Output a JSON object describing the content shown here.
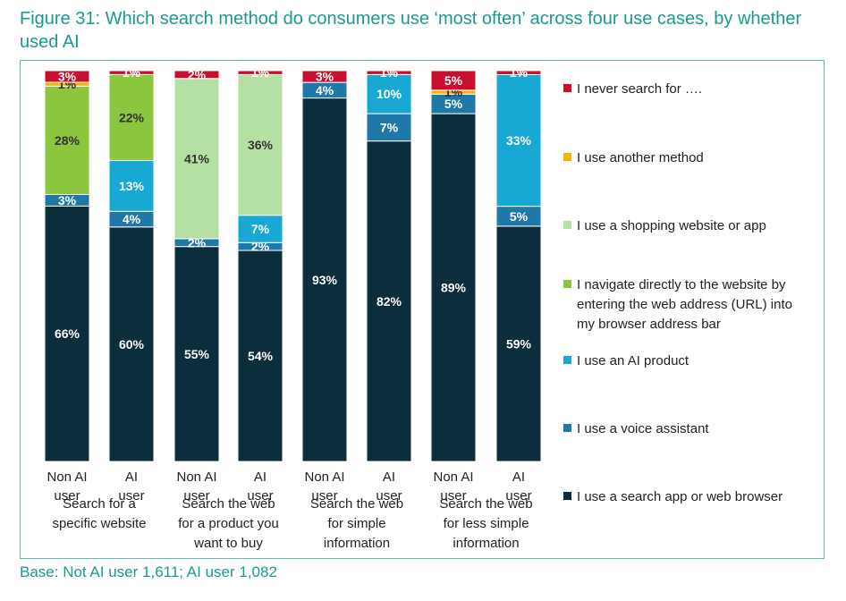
{
  "figure_title": "Figure 31: Which search method do consumers use ‘most often’ across four use cases, by whether used AI",
  "base_note": "Base: Not AI user 1,611; AI user 1,082",
  "colors": {
    "title": "#1a9a8f",
    "frame": "#5bbcb3",
    "label_dark": "#ffffff",
    "label_light": "#333333"
  },
  "chart_data": {
    "type": "bar",
    "stacked": true,
    "percent_stacked": true,
    "legend_position": "right",
    "grid": false,
    "groups": [
      "Search for a specific website",
      "Search the web for a product you want to buy",
      "Search the web for simple information",
      "Search the web for less simple information"
    ],
    "categories": [
      "Non AI user",
      "AI user",
      "Non AI user",
      "AI user",
      "Non AI user",
      "AI user",
      "Non AI user",
      "AI user"
    ],
    "category_group": [
      0,
      0,
      1,
      1,
      2,
      2,
      3,
      3
    ],
    "series": [
      {
        "name": "I use a search app or web browser",
        "color": "#0c2d3c",
        "values": [
          66,
          60,
          55,
          54,
          93,
          82,
          89,
          59
        ]
      },
      {
        "name": "I use a voice assistant",
        "color": "#1f78a8",
        "values": [
          3,
          4,
          2,
          2,
          4,
          7,
          5,
          5
        ]
      },
      {
        "name": "I use an AI product",
        "color": "#17a9d4",
        "values": [
          0,
          13,
          0,
          7,
          0,
          10,
          0,
          33
        ]
      },
      {
        "name": "I navigate directly to the website by entering the web address (URL) into my browser address bar",
        "color": "#8cc63f",
        "values": [
          28,
          22,
          0,
          0,
          0,
          0,
          0,
          0
        ]
      },
      {
        "name": "I use a shopping website or app",
        "color": "#b5e0a3",
        "values": [
          0,
          0,
          41,
          36,
          0,
          0,
          0,
          0
        ]
      },
      {
        "name": "I use another method",
        "color": "#f2b705",
        "values": [
          1,
          0,
          0,
          0,
          0,
          0,
          1,
          0
        ]
      },
      {
        "name": "I never search for ….",
        "color": "#c8102e",
        "values": [
          3,
          1,
          2,
          1,
          3,
          1,
          5,
          1
        ]
      }
    ],
    "legend_order": [
      "I never search for ….",
      "I use another method",
      "I use a shopping website or app",
      "I navigate directly to the website by entering the web address (URL) into my browser address bar",
      "I use an AI product",
      "I use a voice assistant",
      "I use a search app or web browser"
    ]
  }
}
